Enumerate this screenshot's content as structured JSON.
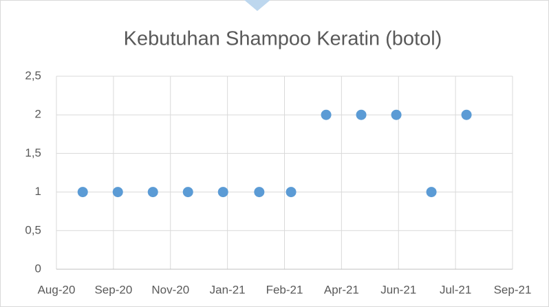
{
  "chart_data": {
    "type": "scatter",
    "title": "Kebutuhan Shampoo Keratin (botol)",
    "x": [
      44068,
      44100,
      44132,
      44164,
      44196,
      44229,
      44258,
      44290,
      44322,
      44354,
      44386,
      44418
    ],
    "series": [
      {
        "color": "#5b9bd5",
        "values": [
          1,
          1,
          1,
          1,
          1,
          1,
          1,
          2,
          2,
          2,
          1,
          2
        ]
      }
    ],
    "xlim": [
      44044,
      44460
    ],
    "xticks": [
      {
        "value": 44044,
        "label": "Aug-20"
      },
      {
        "value": 44096,
        "label": "Sep-20"
      },
      {
        "value": 44148,
        "label": "Nov-20"
      },
      {
        "value": 44200,
        "label": "Jan-21"
      },
      {
        "value": 44252,
        "label": "Feb-21"
      },
      {
        "value": 44304,
        "label": "Apr-21"
      },
      {
        "value": 44356,
        "label": "Jun-21"
      },
      {
        "value": 44408,
        "label": "Jul-21"
      },
      {
        "value": 44460,
        "label": "Sep-21"
      }
    ],
    "ylim": [
      0,
      2.5
    ],
    "yticks": [
      0,
      {
        "value": 0.5,
        "label": "0,5"
      },
      1,
      {
        "value": 1.5,
        "label": "1,5"
      },
      2,
      {
        "value": 2.5,
        "label": "2,5"
      }
    ],
    "grid": true
  }
}
